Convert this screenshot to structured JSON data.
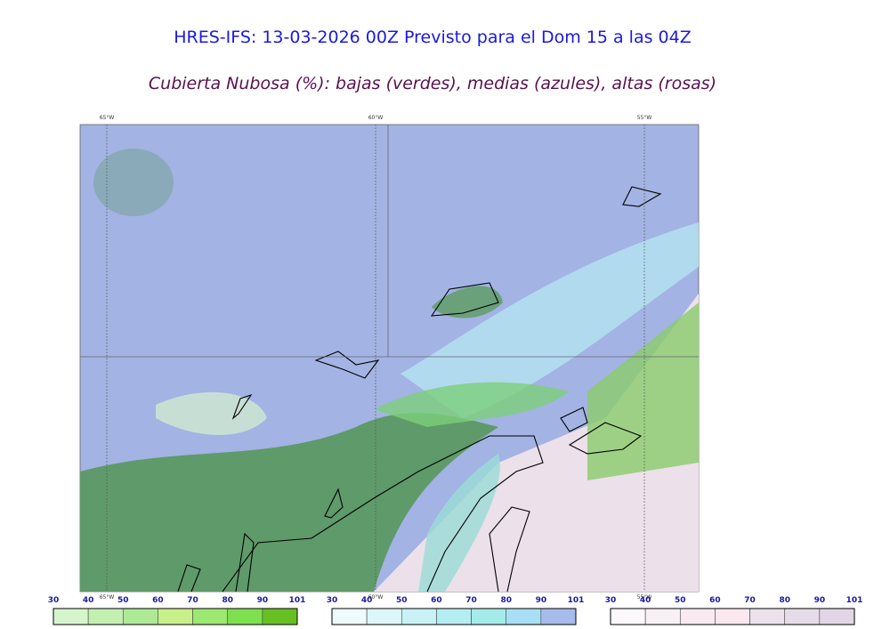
{
  "header": {
    "title": "HRES-IFS: 13-03-2026 00Z Previsto para el Dom 15 a las 04Z",
    "subtitle": "Cubierta Nubosa (%): bajas (verdes), medias (azules), altas (rosas)"
  },
  "map": {
    "top_lon_labels": [
      "65°W",
      "60°W",
      "55°W"
    ],
    "bottom_lon_labels": [
      "65°W",
      "60°W",
      "55°W"
    ]
  },
  "legend": {
    "colorbars": [
      {
        "ticks": [
          30,
          40,
          50,
          60,
          70,
          80,
          90,
          101
        ],
        "colors": [
          "#d6f5cc",
          "#c2f0b0",
          "#aeea96",
          "#c8f08a",
          "#9ce870",
          "#7ee04e",
          "#66c022"
        ]
      },
      {
        "ticks": [
          30,
          40,
          50,
          60,
          70,
          80,
          90,
          101
        ],
        "colors": [
          "#eefafc",
          "#dcf6fa",
          "#c8f2f6",
          "#b4eef2",
          "#a4ecea",
          "#a8def6",
          "#a6bcec"
        ]
      },
      {
        "ticks": [
          30,
          40,
          50,
          60,
          70,
          80,
          90,
          101
        ],
        "colors": [
          "#fbf7fa",
          "#f7f0f5",
          "#f8eaf0",
          "#fbe7ee",
          "#ece2ec",
          "#e6dbe8",
          "#e2d6e6"
        ]
      }
    ]
  }
}
